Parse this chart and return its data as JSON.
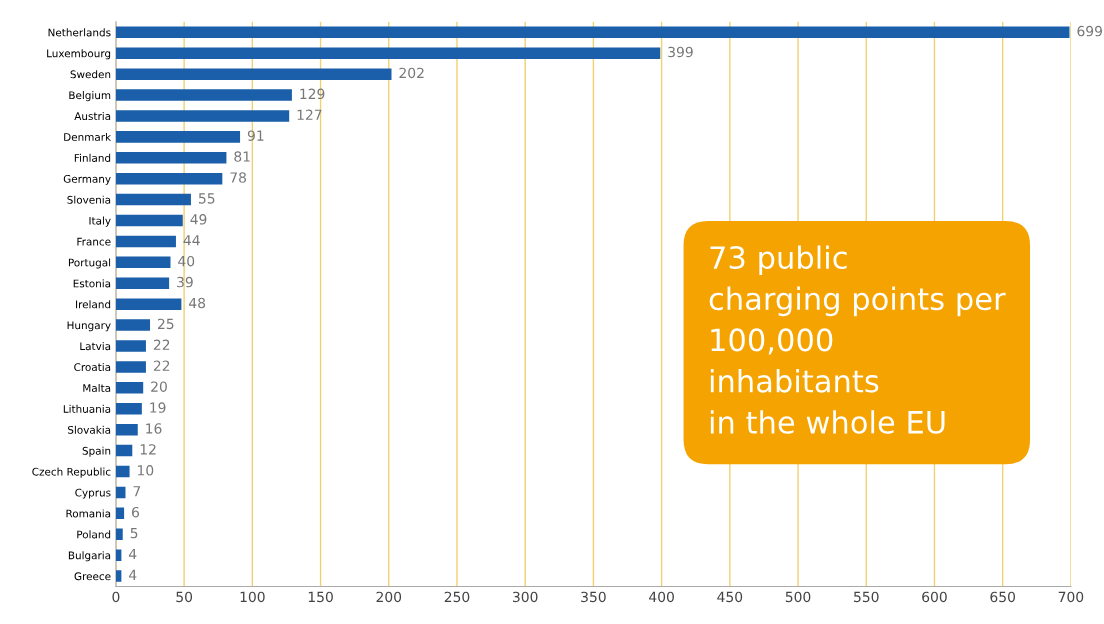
{
  "chart_data": {
    "type": "bar",
    "orientation": "horizontal",
    "categories": [
      "Netherlands",
      "Luxembourg",
      "Sweden",
      "Belgium",
      "Austria",
      "Denmark",
      "Finland",
      "Germany",
      "Slovenia",
      "Italy",
      "France",
      "Portugal",
      "Estonia",
      "Ireland",
      "Hungary",
      "Latvia",
      "Croatia",
      "Malta",
      "Lithuania",
      "Slovakia",
      "Spain",
      "Czech Republic",
      "Cyprus",
      "Romania",
      "Poland",
      "Bulgaria",
      "Greece"
    ],
    "values": [
      699,
      399,
      202,
      129,
      127,
      91,
      81,
      78,
      55,
      49,
      44,
      40,
      39,
      48,
      25,
      22,
      22,
      20,
      19,
      16,
      12,
      10,
      7,
      6,
      5,
      4,
      4
    ],
    "color": "#1b5ea9",
    "data_labels": true,
    "xlim": [
      0,
      700
    ],
    "xticks": [
      0,
      50,
      100,
      150,
      200,
      250,
      300,
      350,
      400,
      450,
      500,
      550,
      600,
      650,
      700
    ],
    "grid": "x",
    "annotations": [
      "73 public\ncharging points per\n100,000\ninhabitants\nin the whole EU"
    ]
  }
}
